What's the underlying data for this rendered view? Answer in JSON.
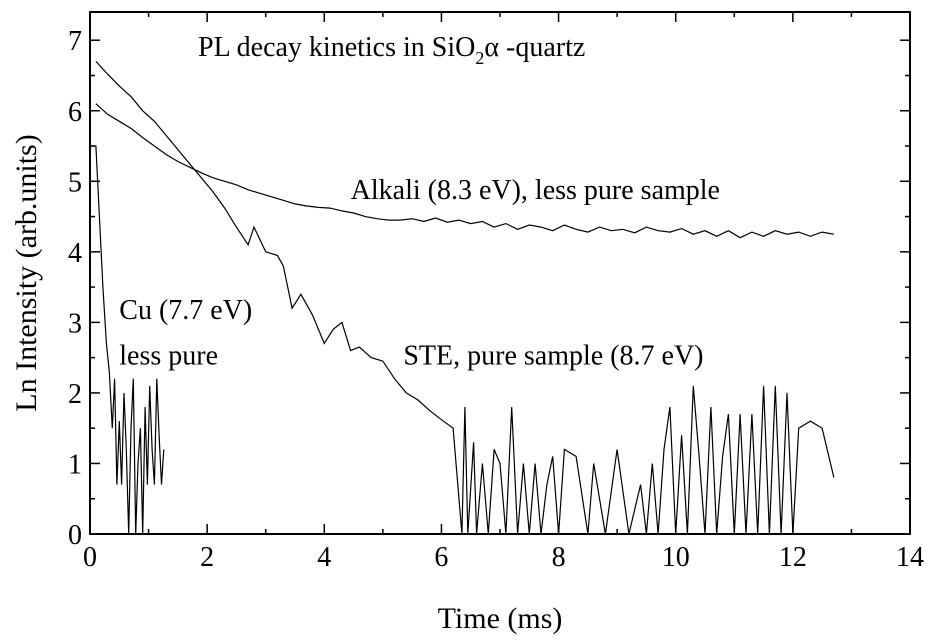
{
  "chart_data": {
    "type": "line",
    "title": "PL decay kinetics in SiO",
    "title_subscript": "2",
    "title_greek": "α",
    "title_suffix": " -quartz",
    "xlabel": "Time (ms)",
    "ylabel": "Ln Intensity (arb.units)",
    "xlim": [
      0,
      14
    ],
    "ylim": [
      0,
      7.4
    ],
    "xticks": [
      0,
      2,
      4,
      6,
      8,
      10,
      12,
      14
    ],
    "yticks": [
      0,
      1,
      2,
      3,
      4,
      5,
      6,
      7
    ],
    "grid": false,
    "annotations": [
      {
        "id": "alkali",
        "text": "Alkali (8.3 eV), less pure sample",
        "x": 4.45,
        "y": 4.75
      },
      {
        "id": "cu",
        "text": "Cu (7.7 eV)",
        "x": 0.5,
        "y": 3.05
      },
      {
        "id": "cu2",
        "text": "less pure",
        "x": 0.5,
        "y": 2.4
      },
      {
        "id": "ste",
        "text": "STE, pure sample (8.7 eV)",
        "x": 5.35,
        "y": 2.4
      }
    ],
    "series": [
      {
        "name": "Alkali (8.3 eV), less pure sample",
        "x": [
          0.1,
          0.3,
          0.5,
          0.7,
          0.9,
          1.1,
          1.3,
          1.5,
          1.7,
          1.9,
          2.1,
          2.3,
          2.5,
          2.7,
          2.9,
          3.1,
          3.3,
          3.5,
          3.7,
          3.9,
          4.1,
          4.3,
          4.5,
          4.7,
          4.9,
          5.1,
          5.3,
          5.5,
          5.7,
          5.9,
          6.1,
          6.3,
          6.5,
          6.7,
          6.9,
          7.1,
          7.3,
          7.5,
          7.7,
          7.9,
          8.1,
          8.3,
          8.5,
          8.7,
          8.9,
          9.1,
          9.3,
          9.5,
          9.7,
          9.9,
          10.1,
          10.3,
          10.5,
          10.7,
          10.9,
          11.1,
          11.3,
          11.5,
          11.7,
          11.9,
          12.1,
          12.3,
          12.5,
          12.7
        ],
        "y": [
          6.1,
          5.95,
          5.85,
          5.75,
          5.62,
          5.5,
          5.38,
          5.28,
          5.2,
          5.12,
          5.05,
          5.0,
          4.95,
          4.88,
          4.83,
          4.78,
          4.73,
          4.68,
          4.65,
          4.63,
          4.62,
          4.58,
          4.55,
          4.5,
          4.47,
          4.45,
          4.45,
          4.47,
          4.43,
          4.48,
          4.42,
          4.45,
          4.4,
          4.43,
          4.35,
          4.4,
          4.32,
          4.38,
          4.35,
          4.3,
          4.38,
          4.32,
          4.28,
          4.35,
          4.3,
          4.32,
          4.27,
          4.35,
          4.3,
          4.28,
          4.33,
          4.25,
          4.3,
          4.22,
          4.3,
          4.2,
          4.28,
          4.22,
          4.3,
          4.25,
          4.28,
          4.22,
          4.28,
          4.25
        ]
      },
      {
        "name": "STE, pure sample (8.7 eV)",
        "x": [
          0.1,
          0.3,
          0.5,
          0.7,
          0.9,
          1.1,
          1.3,
          1.5,
          1.7,
          1.9,
          2.1,
          2.3,
          2.5,
          2.7,
          2.8,
          3.0,
          3.2,
          3.3,
          3.45,
          3.6,
          3.8,
          4.0,
          4.15,
          4.3,
          4.45,
          4.6,
          4.8,
          5.0,
          5.2,
          5.4,
          5.6,
          5.8,
          6.0,
          6.2,
          6.35,
          6.4,
          6.45,
          6.55,
          6.6,
          6.7,
          6.8,
          6.9,
          7.0,
          7.1,
          7.2,
          7.3,
          7.4,
          7.5,
          7.6,
          7.7,
          7.8,
          7.9,
          8.0,
          8.1,
          8.3,
          8.5,
          8.6,
          8.8,
          9.0,
          9.2,
          9.4,
          9.5,
          9.6,
          9.7,
          9.8,
          9.9,
          10.0,
          10.1,
          10.2,
          10.3,
          10.4,
          10.5,
          10.6,
          10.7,
          10.8,
          10.9,
          11.0,
          11.1,
          11.2,
          11.3,
          11.4,
          11.5,
          11.6,
          11.7,
          11.8,
          11.9,
          12.0,
          12.1,
          12.3,
          12.5,
          12.7
        ],
        "y": [
          6.7,
          6.52,
          6.35,
          6.2,
          6.0,
          5.85,
          5.65,
          5.45,
          5.25,
          5.05,
          4.85,
          4.62,
          4.35,
          4.1,
          4.35,
          4.0,
          3.95,
          3.8,
          3.2,
          3.4,
          3.1,
          2.7,
          2.9,
          3.0,
          2.6,
          2.65,
          2.5,
          2.45,
          2.2,
          2.0,
          1.9,
          1.75,
          1.62,
          1.5,
          0,
          1.8,
          0,
          1.3,
          0,
          1.0,
          0,
          1.2,
          1.0,
          0,
          1.8,
          0,
          1.0,
          0,
          1.0,
          0,
          0.7,
          1.1,
          0,
          1.2,
          1.1,
          0,
          1.0,
          0,
          1.2,
          0,
          0.7,
          0,
          1.0,
          0,
          1.2,
          1.8,
          0,
          1.4,
          0,
          2.1,
          1.1,
          0,
          1.8,
          0,
          1.1,
          1.7,
          0,
          1.7,
          0,
          1.7,
          0,
          2.1,
          0,
          2.1,
          0,
          2.0,
          0,
          1.5,
          1.6,
          1.5,
          0.8
        ]
      },
      {
        "name": "Cu (7.7 eV) less pure",
        "x": [
          0.0,
          0.1,
          0.16,
          0.22,
          0.28,
          0.33,
          0.38,
          0.42,
          0.46,
          0.5,
          0.54,
          0.58,
          0.62,
          0.66,
          0.7,
          0.74,
          0.78,
          0.82,
          0.86,
          0.9,
          0.94,
          0.98,
          1.02,
          1.06,
          1.1,
          1.14,
          1.18,
          1.22,
          1.26
        ],
        "y": [
          5.5,
          5.5,
          4.5,
          3.5,
          2.7,
          2.3,
          1.5,
          2.2,
          0.7,
          1.6,
          0.7,
          2.0,
          1.2,
          0,
          1.5,
          2.2,
          0,
          1.0,
          1.5,
          0,
          1.8,
          0.7,
          2.1,
          1.2,
          0.7,
          2.2,
          1.4,
          0.7,
          1.2
        ]
      }
    ]
  }
}
